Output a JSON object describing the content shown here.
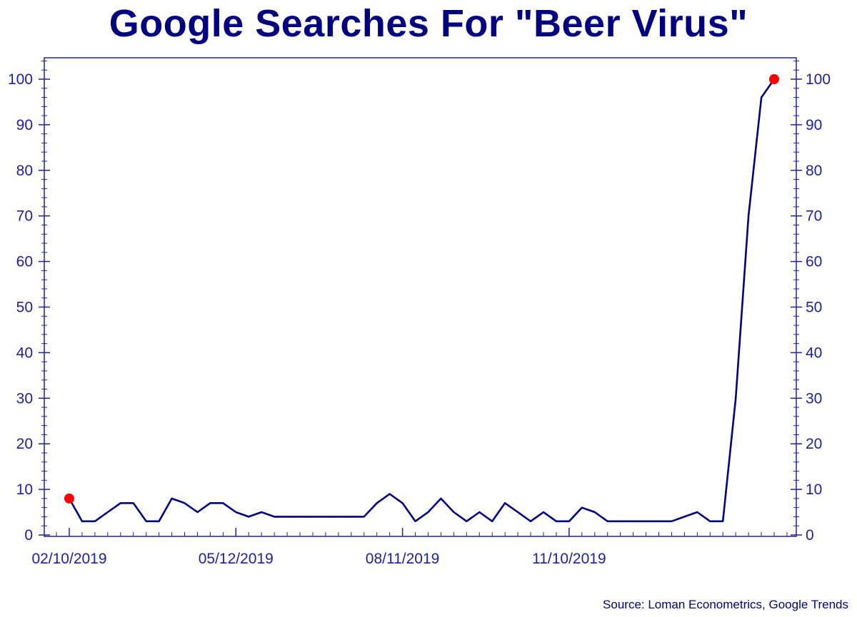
{
  "chart_data": {
    "type": "line",
    "title": "Google Searches For \"Beer Virus\"",
    "source": "Source: Loman Econometrics, Google Trends",
    "xlabel": "",
    "ylabel": "",
    "x_tick_labels": [
      "02/10/2019",
      "05/12/2019",
      "08/11/2019",
      "11/10/2019"
    ],
    "x_tick_dates": [
      "2019-02-10",
      "2019-05-12",
      "2019-08-11",
      "2019-11-10"
    ],
    "ylim": [
      0,
      105
    ],
    "y_ticks": [
      0,
      10,
      20,
      30,
      40,
      50,
      60,
      70,
      80,
      90,
      100
    ],
    "y_tick_labels": [
      "0",
      "10",
      "20",
      "30",
      "40",
      "50",
      "60",
      "70",
      "80",
      "90",
      "100"
    ],
    "grid": false,
    "y_axis_both_sides": true,
    "line_color": "#000080",
    "axis_color": "#2020a0",
    "marker_color": "#ff0000",
    "highlight_points": [
      "2019-02-10",
      "2020-03-01"
    ],
    "series": [
      {
        "x": [
          "2019-02-10",
          "2019-02-17",
          "2019-02-24",
          "2019-03-03",
          "2019-03-10",
          "2019-03-17",
          "2019-03-24",
          "2019-03-31",
          "2019-04-07",
          "2019-04-14",
          "2019-04-21",
          "2019-04-28",
          "2019-05-05",
          "2019-05-12",
          "2019-05-19",
          "2019-05-26",
          "2019-06-02",
          "2019-06-09",
          "2019-06-16",
          "2019-06-23",
          "2019-06-30",
          "2019-07-07",
          "2019-07-14",
          "2019-07-21",
          "2019-07-28",
          "2019-08-04",
          "2019-08-11",
          "2019-08-18",
          "2019-08-25",
          "2019-09-01",
          "2019-09-08",
          "2019-09-15",
          "2019-09-22",
          "2019-09-29",
          "2019-10-06",
          "2019-10-13",
          "2019-10-20",
          "2019-10-27",
          "2019-11-03",
          "2019-11-10",
          "2019-11-17",
          "2019-11-24",
          "2019-12-01",
          "2019-12-08",
          "2019-12-15",
          "2019-12-22",
          "2019-12-29",
          "2020-01-05",
          "2020-01-12",
          "2020-01-19",
          "2020-01-26",
          "2020-02-02",
          "2020-02-09",
          "2020-02-16",
          "2020-02-23",
          "2020-03-01"
        ],
        "values": [
          8,
          3,
          3,
          5,
          7,
          7,
          3,
          3,
          8,
          7,
          5,
          7,
          7,
          5,
          4,
          5,
          4,
          4,
          4,
          4,
          4,
          4,
          4,
          4,
          7,
          9,
          7,
          3,
          5,
          8,
          5,
          3,
          5,
          3,
          7,
          5,
          3,
          5,
          3,
          3,
          6,
          5,
          3,
          3,
          3,
          3,
          3,
          3,
          4,
          5,
          3,
          3,
          30,
          70,
          96,
          100
        ]
      }
    ]
  }
}
